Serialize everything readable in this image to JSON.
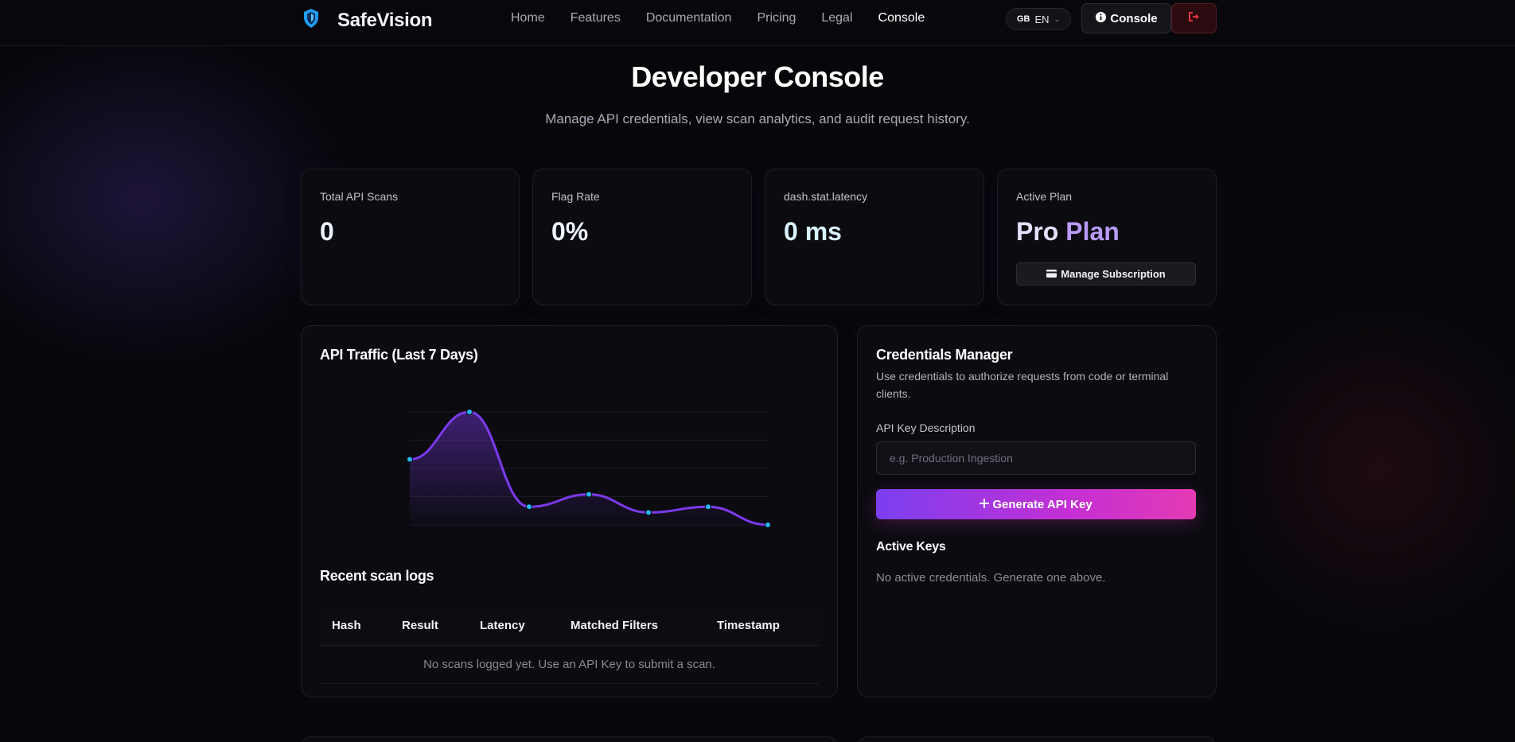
{
  "nav": {
    "brand": "SafeVision",
    "links": [
      "Home",
      "Features",
      "Documentation",
      "Pricing",
      "Legal",
      "Console"
    ],
    "active_link": "Console",
    "lang_flag": "GB",
    "lang_code": "EN",
    "console_button": "Console",
    "logout_icon": "logout-icon"
  },
  "header": {
    "title": "Developer Console",
    "subtitle": "Manage API credentials, view scan analytics, and audit request history."
  },
  "stats": {
    "total_scans_label": "Total API Scans",
    "total_scans_value": "0",
    "flag_rate_label": "Flag Rate",
    "flag_rate_value": "0%",
    "latency_label": "dash.stat.latency",
    "latency_value": "0 ms",
    "plan_label": "Active Plan",
    "plan_name_1": "Pro",
    "plan_name_2": "Plan",
    "manage_label": "Manage Subscription"
  },
  "traffic": {
    "title": "API Traffic (Last 7 Days)"
  },
  "chart_data": {
    "type": "area",
    "title": "API Traffic (Last 7 Days)",
    "x": [
      1,
      2,
      3,
      4,
      5,
      6,
      7
    ],
    "values": [
      0.58,
      1.0,
      0.16,
      0.27,
      0.11,
      0.16,
      0.0
    ],
    "ylim": [
      0,
      1
    ],
    "grid": true,
    "line_color": "#7c3aed",
    "point_color": "#22b8f0"
  },
  "logs": {
    "title": "Recent scan logs",
    "columns": [
      "Hash",
      "Result",
      "Latency",
      "Matched Filters",
      "Timestamp"
    ],
    "empty": "No scans logged yet. Use an API Key to submit a scan."
  },
  "credentials": {
    "title": "Credentials Manager",
    "description": "Use credentials to authorize requests from code or terminal clients.",
    "field_label": "API Key Description",
    "placeholder": "e.g. Production Ingestion",
    "generate_label": "Generate API Key",
    "active_title": "Active Keys",
    "active_empty": "No active credentials. Generate one above."
  },
  "colors": {
    "accent": "#7c3aed",
    "accent_pink": "#e43ab4",
    "background": "#07070b",
    "danger": "#e0323e"
  }
}
